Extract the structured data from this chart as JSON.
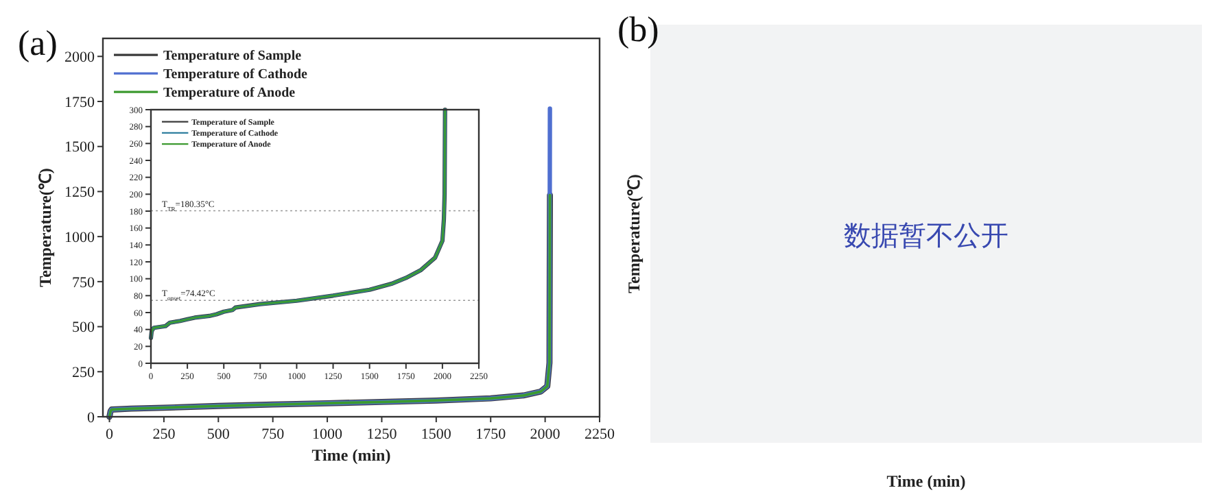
{
  "chart_data": [
    {
      "type": "line",
      "title": "(a)",
      "xlabel": "Time (min)",
      "ylabel": "Temperature(℃)",
      "xlim": [
        -30,
        2250
      ],
      "ylim": [
        0,
        2100
      ],
      "xticks": [
        0,
        250,
        500,
        750,
        1000,
        1250,
        1500,
        1750,
        2000,
        2250
      ],
      "yticks": [
        0,
        250,
        500,
        750,
        1000,
        1250,
        1500,
        1750,
        2000
      ],
      "legend": "top left",
      "grid": false,
      "series": [
        {
          "name": "Temperature of Sample",
          "color": "#3a3a3a",
          "x": [
            0,
            5,
            10,
            100,
            250,
            500,
            750,
            1000,
            1250,
            1500,
            1750,
            1900,
            1980,
            2010,
            2020,
            2022
          ],
          "values": [
            0,
            30,
            40,
            45,
            50,
            60,
            68,
            75,
            82,
            90,
            102,
            118,
            140,
            170,
            300,
            1230
          ]
        },
        {
          "name": "Temperature of Cathode",
          "color": "#4f6fd0",
          "x": [
            0,
            5,
            10,
            100,
            250,
            500,
            750,
            1000,
            1250,
            1500,
            1750,
            1900,
            1980,
            2010,
            2020,
            2022
          ],
          "values": [
            0,
            30,
            40,
            45,
            50,
            60,
            68,
            75,
            82,
            90,
            102,
            118,
            140,
            170,
            300,
            1710
          ]
        },
        {
          "name": "Temperature of Anode",
          "color": "#3c9a30",
          "x": [
            0,
            5,
            10,
            100,
            250,
            500,
            750,
            1000,
            1250,
            1500,
            1750,
            1900,
            1980,
            2010,
            2020,
            2022
          ],
          "values": [
            0,
            30,
            40,
            45,
            50,
            60,
            68,
            75,
            82,
            90,
            102,
            118,
            140,
            170,
            300,
            1230
          ]
        }
      ]
    },
    {
      "type": "line",
      "xlim": [
        0,
        2250
      ],
      "ylim": [
        0,
        300
      ],
      "xticks": [
        0,
        250,
        500,
        750,
        1000,
        1250,
        1500,
        1750,
        2000,
        2250
      ],
      "yticks": [
        0,
        20,
        40,
        60,
        80,
        100,
        120,
        140,
        160,
        180,
        200,
        220,
        240,
        260,
        280,
        300
      ],
      "legend": "top left",
      "grid": false,
      "ref_lines": [
        {
          "axis": "y",
          "value": 180.35,
          "label": "T$_{TR}$=180.35°C",
          "line_style": "dotted",
          "color": "#999999"
        },
        {
          "axis": "y",
          "value": 74.42,
          "label": "T$_{onset}$=74.42°C",
          "line_style": "dotted",
          "color": "#999999"
        }
      ],
      "series": [
        {
          "name": "Temperature of Sample",
          "color": "#3a3a3a",
          "x": [
            0,
            5,
            20,
            100,
            130,
            200,
            250,
            300,
            400,
            450,
            500,
            560,
            580,
            750,
            1000,
            1250,
            1500,
            1650,
            1750,
            1850,
            1950,
            2000,
            2010,
            2015,
            2018
          ],
          "values": [
            30,
            38,
            42,
            44,
            48,
            50,
            52,
            54,
            56,
            58,
            61,
            63,
            66,
            70,
            74,
            80,
            87,
            94,
            101,
            110,
            125,
            145,
            170,
            200,
            300
          ]
        },
        {
          "name": "Temperature of Cathode",
          "color": "#2f7f9f",
          "x": [
            0,
            5,
            20,
            100,
            130,
            200,
            250,
            300,
            400,
            450,
            500,
            560,
            580,
            750,
            1000,
            1250,
            1500,
            1650,
            1750,
            1850,
            1950,
            2000,
            2010,
            2015,
            2018
          ],
          "values": [
            30,
            38,
            42,
            44,
            48,
            50,
            52,
            54,
            56,
            58,
            61,
            63,
            66,
            70,
            74,
            80,
            87,
            94,
            101,
            110,
            125,
            145,
            170,
            200,
            300
          ]
        },
        {
          "name": "Temperature of Anode",
          "color": "#3c9a30",
          "x": [
            0,
            5,
            20,
            100,
            130,
            200,
            250,
            300,
            400,
            450,
            500,
            560,
            580,
            750,
            1000,
            1250,
            1500,
            1650,
            1750,
            1850,
            1950,
            2000,
            2010,
            2015,
            2018
          ],
          "values": [
            30,
            38,
            42,
            44,
            48,
            50,
            52,
            54,
            56,
            58,
            61,
            63,
            66,
            70,
            74,
            80,
            87,
            94,
            101,
            110,
            125,
            145,
            170,
            200,
            300
          ]
        }
      ]
    },
    {
      "type": "other",
      "title": "(b)",
      "xlabel": "Time (min)",
      "ylabel": "Temperature(℃)",
      "annotations": [
        "数据暂不公开"
      ]
    }
  ]
}
